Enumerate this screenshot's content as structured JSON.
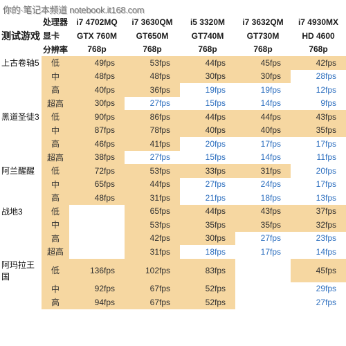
{
  "watermark": "你的·笔记本频道 notebook.it168.com",
  "header": {
    "label_game": "测试游戏",
    "label_cpu": "处理器",
    "label_gpu": "显卡",
    "label_res": "分辨率",
    "cpus": [
      "i7 4702MQ",
      "i7 3630QM",
      "i5 3320M",
      "i7 3632QM",
      "i7 4930MX"
    ],
    "gpus": [
      "GTX 760M",
      "GT650M",
      "GT740M",
      "GT730M",
      "HD 4600"
    ],
    "res": [
      "768p",
      "768p",
      "768p",
      "768p",
      "768p"
    ]
  },
  "rows": [
    {
      "game": "上古卷轴5",
      "sub": "低",
      "v": [
        "49fps",
        "53fps",
        "44fps",
        "45fps",
        "42fps"
      ],
      "hl": [
        1,
        1,
        1,
        1,
        1
      ],
      "ac": [
        0,
        0,
        0,
        0,
        0
      ]
    },
    {
      "game": "",
      "sub": "中",
      "v": [
        "48fps",
        "48fps",
        "30fps",
        "30fps",
        "28fps"
      ],
      "hl": [
        1,
        1,
        1,
        1,
        0
      ],
      "ac": [
        0,
        0,
        0,
        0,
        1
      ]
    },
    {
      "game": "",
      "sub": "高",
      "v": [
        "40fps",
        "36fps",
        "19fps",
        "19fps",
        "12fps"
      ],
      "hl": [
        1,
        1,
        0,
        0,
        0
      ],
      "ac": [
        0,
        0,
        1,
        1,
        1
      ]
    },
    {
      "game": "",
      "sub": "超高",
      "v": [
        "30fps",
        "27fps",
        "15fps",
        "14fps",
        "9fps"
      ],
      "hl": [
        1,
        0,
        0,
        0,
        0
      ],
      "ac": [
        0,
        1,
        1,
        1,
        1
      ]
    },
    {
      "game": "黑道圣徒3",
      "sub": "低",
      "v": [
        "90fps",
        "86fps",
        "44fps",
        "44fps",
        "43fps"
      ],
      "hl": [
        1,
        1,
        1,
        1,
        1
      ],
      "ac": [
        0,
        0,
        0,
        0,
        0
      ]
    },
    {
      "game": "",
      "sub": "中",
      "v": [
        "87fps",
        "78fps",
        "40fps",
        "40fps",
        "35fps"
      ],
      "hl": [
        1,
        1,
        1,
        1,
        1
      ],
      "ac": [
        0,
        0,
        0,
        0,
        0
      ]
    },
    {
      "game": "",
      "sub": "高",
      "v": [
        "46fps",
        "41fps",
        "20fps",
        "17fps",
        "17fps"
      ],
      "hl": [
        1,
        1,
        0,
        0,
        0
      ],
      "ac": [
        0,
        0,
        1,
        1,
        1
      ]
    },
    {
      "game": "",
      "sub": "超高",
      "v": [
        "38fps",
        "27fps",
        "15fps",
        "14fps",
        "11fps"
      ],
      "hl": [
        1,
        0,
        0,
        0,
        0
      ],
      "ac": [
        0,
        1,
        1,
        1,
        1
      ]
    },
    {
      "game": "阿兰醒醒",
      "sub": "低",
      "v": [
        "72fps",
        "53fps",
        "33fps",
        "31fps",
        "20fps"
      ],
      "hl": [
        1,
        1,
        1,
        1,
        0
      ],
      "ac": [
        0,
        0,
        0,
        0,
        1
      ]
    },
    {
      "game": "",
      "sub": "中",
      "v": [
        "65fps",
        "44fps",
        "27fps",
        "24fps",
        "17fps"
      ],
      "hl": [
        1,
        1,
        0,
        0,
        0
      ],
      "ac": [
        0,
        0,
        1,
        1,
        1
      ]
    },
    {
      "game": "",
      "sub": "高",
      "v": [
        "48fps",
        "31fps",
        "21fps",
        "18fps",
        "13fps"
      ],
      "hl": [
        1,
        1,
        0,
        0,
        0
      ],
      "ac": [
        0,
        0,
        1,
        1,
        1
      ]
    },
    {
      "game": "战地3",
      "sub": "低",
      "v": [
        "",
        "65fps",
        "44fps",
        "43fps",
        "37fps"
      ],
      "hl": [
        0,
        1,
        1,
        1,
        1
      ],
      "ac": [
        0,
        0,
        0,
        0,
        0
      ]
    },
    {
      "game": "",
      "sub": "中",
      "v": [
        "",
        "53fps",
        "35fps",
        "35fps",
        "32fps"
      ],
      "hl": [
        0,
        1,
        1,
        1,
        1
      ],
      "ac": [
        0,
        0,
        0,
        0,
        0
      ]
    },
    {
      "game": "",
      "sub": "高",
      "v": [
        "",
        "42fps",
        "30fps",
        "27fps",
        "23fps"
      ],
      "hl": [
        0,
        1,
        1,
        0,
        0
      ],
      "ac": [
        0,
        0,
        0,
        1,
        1
      ]
    },
    {
      "game": "",
      "sub": "超高",
      "v": [
        "",
        "31fps",
        "18fps",
        "17fps",
        "14fps"
      ],
      "hl": [
        0,
        1,
        0,
        0,
        0
      ],
      "ac": [
        0,
        0,
        1,
        1,
        1
      ]
    },
    {
      "game": "阿玛拉王国",
      "sub": "低",
      "v": [
        "136fps",
        "102fps",
        "83fps",
        "",
        "45fps"
      ],
      "hl": [
        1,
        1,
        1,
        0,
        1
      ],
      "ac": [
        0,
        0,
        0,
        0,
        0
      ]
    },
    {
      "game": "",
      "sub": "中",
      "v": [
        "92fps",
        "67fps",
        "52fps",
        "",
        "29fps"
      ],
      "hl": [
        1,
        1,
        1,
        0,
        0
      ],
      "ac": [
        0,
        0,
        0,
        0,
        1
      ]
    },
    {
      "game": "",
      "sub": "高",
      "v": [
        "94fps",
        "67fps",
        "52fps",
        "",
        "27fps"
      ],
      "hl": [
        1,
        1,
        1,
        0,
        0
      ],
      "ac": [
        0,
        0,
        0,
        0,
        1
      ]
    }
  ],
  "colors": {
    "highlight": "#f6d7a1",
    "accent": "#2d6fbf"
  }
}
